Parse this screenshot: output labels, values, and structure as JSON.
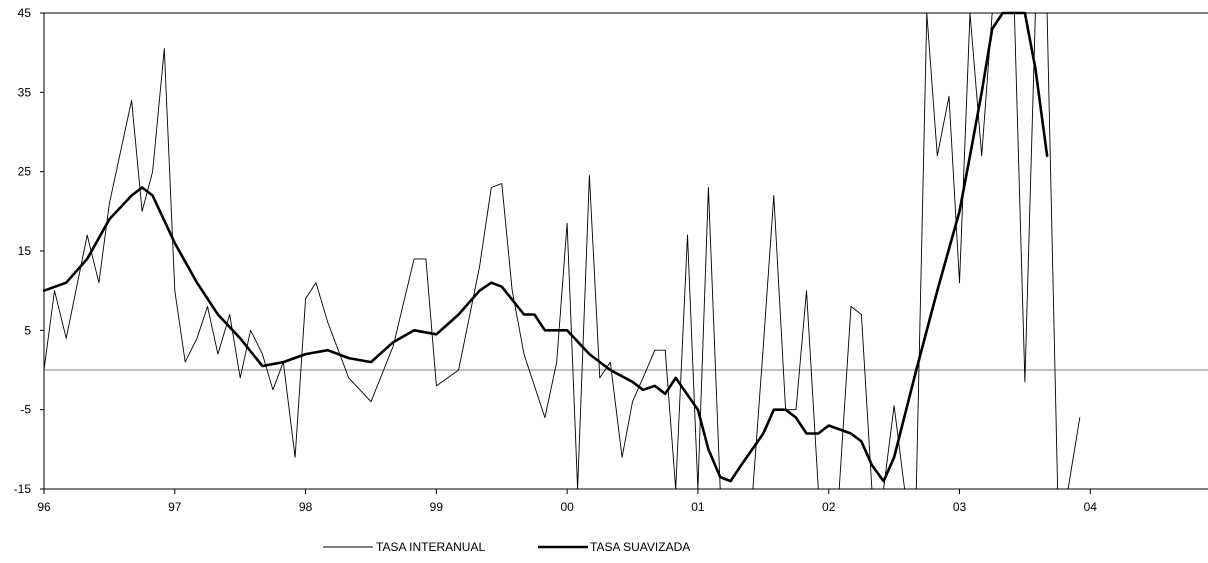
{
  "chart_data": {
    "type": "line",
    "x_tick_labels": [
      "96",
      "97",
      "98",
      "99",
      "00",
      "01",
      "02",
      "03",
      "04"
    ],
    "x_tick_values": [
      1996,
      1997,
      1998,
      1999,
      2000,
      2001,
      2002,
      2003,
      2004
    ],
    "xlim": [
      1996,
      2004.9
    ],
    "ylim": [
      -15,
      45
    ],
    "y_ticks": [
      -15,
      -5,
      5,
      15,
      25,
      35,
      45
    ],
    "y_tick_labels": [
      "-15",
      "-5",
      "5",
      "15",
      "25",
      "35",
      "45"
    ],
    "reference_line_y": 0,
    "grid": false,
    "legend_position": "bottom-center",
    "colors": {
      "series": "#000000",
      "zero_line": "#808080",
      "axis": "#000000"
    },
    "series": [
      {
        "name": "TASA INTERANUAL",
        "stroke": "thin",
        "points": [
          [
            1996.0,
            0
          ],
          [
            1996.08,
            10
          ],
          [
            1996.17,
            4
          ],
          [
            1996.33,
            17
          ],
          [
            1996.42,
            11
          ],
          [
            1996.5,
            21
          ],
          [
            1996.67,
            34
          ],
          [
            1996.75,
            20
          ],
          [
            1996.83,
            25
          ],
          [
            1996.92,
            40.5
          ],
          [
            1997.0,
            10
          ],
          [
            1997.08,
            1
          ],
          [
            1997.17,
            4
          ],
          [
            1997.25,
            8
          ],
          [
            1997.33,
            2
          ],
          [
            1997.42,
            7
          ],
          [
            1997.5,
            -1
          ],
          [
            1997.58,
            5
          ],
          [
            1997.67,
            2
          ],
          [
            1997.75,
            -2.5
          ],
          [
            1997.83,
            1
          ],
          [
            1997.92,
            -11
          ],
          [
            1998.0,
            9
          ],
          [
            1998.08,
            11
          ],
          [
            1998.17,
            6
          ],
          [
            1998.33,
            -1
          ],
          [
            1998.5,
            -4
          ],
          [
            1998.67,
            3
          ],
          [
            1998.83,
            14
          ],
          [
            1998.92,
            14
          ],
          [
            1999.0,
            -2
          ],
          [
            1999.17,
            0
          ],
          [
            1999.33,
            13
          ],
          [
            1999.42,
            23
          ],
          [
            1999.5,
            23.5
          ],
          [
            1999.58,
            10
          ],
          [
            1999.67,
            2
          ],
          [
            1999.83,
            -6
          ],
          [
            1999.92,
            1
          ],
          [
            2000.0,
            18.5
          ],
          [
            2000.08,
            -15
          ],
          [
            2000.17,
            24.5
          ],
          [
            2000.25,
            -1
          ],
          [
            2000.33,
            1
          ],
          [
            2000.42,
            -11
          ],
          [
            2000.5,
            -4
          ],
          [
            2000.58,
            -1
          ],
          [
            2000.67,
            2.5
          ],
          [
            2000.75,
            2.5
          ],
          [
            2000.83,
            -15
          ],
          [
            2000.92,
            17
          ],
          [
            2001.0,
            -15
          ],
          [
            2001.08,
            23
          ],
          [
            2001.17,
            -15
          ],
          [
            2001.25,
            -15
          ],
          [
            2001.42,
            -15
          ],
          [
            2001.5,
            3
          ],
          [
            2001.58,
            22
          ],
          [
            2001.67,
            -5
          ],
          [
            2001.75,
            -5
          ],
          [
            2001.83,
            10
          ],
          [
            2001.92,
            -15
          ],
          [
            2002.0,
            -15
          ],
          [
            2002.08,
            -15
          ],
          [
            2002.17,
            8
          ],
          [
            2002.25,
            7
          ],
          [
            2002.33,
            -15
          ],
          [
            2002.42,
            -15
          ],
          [
            2002.5,
            -4.5
          ],
          [
            2002.58,
            -15
          ],
          [
            2002.67,
            -15
          ],
          [
            2002.75,
            45
          ],
          [
            2002.83,
            27
          ],
          [
            2002.92,
            34.5
          ],
          [
            2003.0,
            11
          ],
          [
            2003.08,
            45
          ],
          [
            2003.17,
            27
          ],
          [
            2003.25,
            45
          ],
          [
            2003.33,
            45
          ],
          [
            2003.42,
            45
          ],
          [
            2003.5,
            -1.5
          ],
          [
            2003.58,
            45
          ],
          [
            2003.67,
            45
          ],
          [
            2003.75,
            -15
          ],
          [
            2003.83,
            -15
          ],
          [
            2003.92,
            -6
          ]
        ]
      },
      {
        "name": "TASA SUAVIZADA",
        "stroke": "thick",
        "points": [
          [
            1996.0,
            10
          ],
          [
            1996.17,
            11
          ],
          [
            1996.33,
            14
          ],
          [
            1996.5,
            19
          ],
          [
            1996.67,
            22
          ],
          [
            1996.75,
            23
          ],
          [
            1996.83,
            22
          ],
          [
            1997.0,
            16
          ],
          [
            1997.17,
            11
          ],
          [
            1997.33,
            7
          ],
          [
            1997.5,
            4
          ],
          [
            1997.67,
            0.5
          ],
          [
            1997.83,
            1
          ],
          [
            1998.0,
            2
          ],
          [
            1998.17,
            2.5
          ],
          [
            1998.33,
            1.5
          ],
          [
            1998.5,
            1
          ],
          [
            1998.67,
            3.5
          ],
          [
            1998.83,
            5
          ],
          [
            1999.0,
            4.5
          ],
          [
            1999.17,
            7
          ],
          [
            1999.33,
            10
          ],
          [
            1999.42,
            11
          ],
          [
            1999.5,
            10.5
          ],
          [
            1999.67,
            7
          ],
          [
            1999.75,
            7
          ],
          [
            1999.83,
            5
          ],
          [
            2000.0,
            5
          ],
          [
            2000.17,
            2
          ],
          [
            2000.33,
            0
          ],
          [
            2000.5,
            -1.5
          ],
          [
            2000.58,
            -2.5
          ],
          [
            2000.67,
            -2
          ],
          [
            2000.75,
            -3
          ],
          [
            2000.83,
            -1
          ],
          [
            2001.0,
            -5
          ],
          [
            2001.08,
            -10
          ],
          [
            2001.17,
            -13.5
          ],
          [
            2001.25,
            -14
          ],
          [
            2001.33,
            -12
          ],
          [
            2001.5,
            -8
          ],
          [
            2001.58,
            -5
          ],
          [
            2001.67,
            -5
          ],
          [
            2001.75,
            -6
          ],
          [
            2001.83,
            -8
          ],
          [
            2001.92,
            -8
          ],
          [
            2002.0,
            -7
          ],
          [
            2002.17,
            -8
          ],
          [
            2002.25,
            -9
          ],
          [
            2002.33,
            -12
          ],
          [
            2002.42,
            -14
          ],
          [
            2002.5,
            -11
          ],
          [
            2002.67,
            0
          ],
          [
            2002.83,
            10
          ],
          [
            2003.0,
            20
          ],
          [
            2003.08,
            27
          ],
          [
            2003.17,
            35
          ],
          [
            2003.25,
            43
          ],
          [
            2003.33,
            45
          ],
          [
            2003.5,
            45
          ],
          [
            2003.58,
            38
          ],
          [
            2003.67,
            27
          ]
        ]
      }
    ]
  }
}
